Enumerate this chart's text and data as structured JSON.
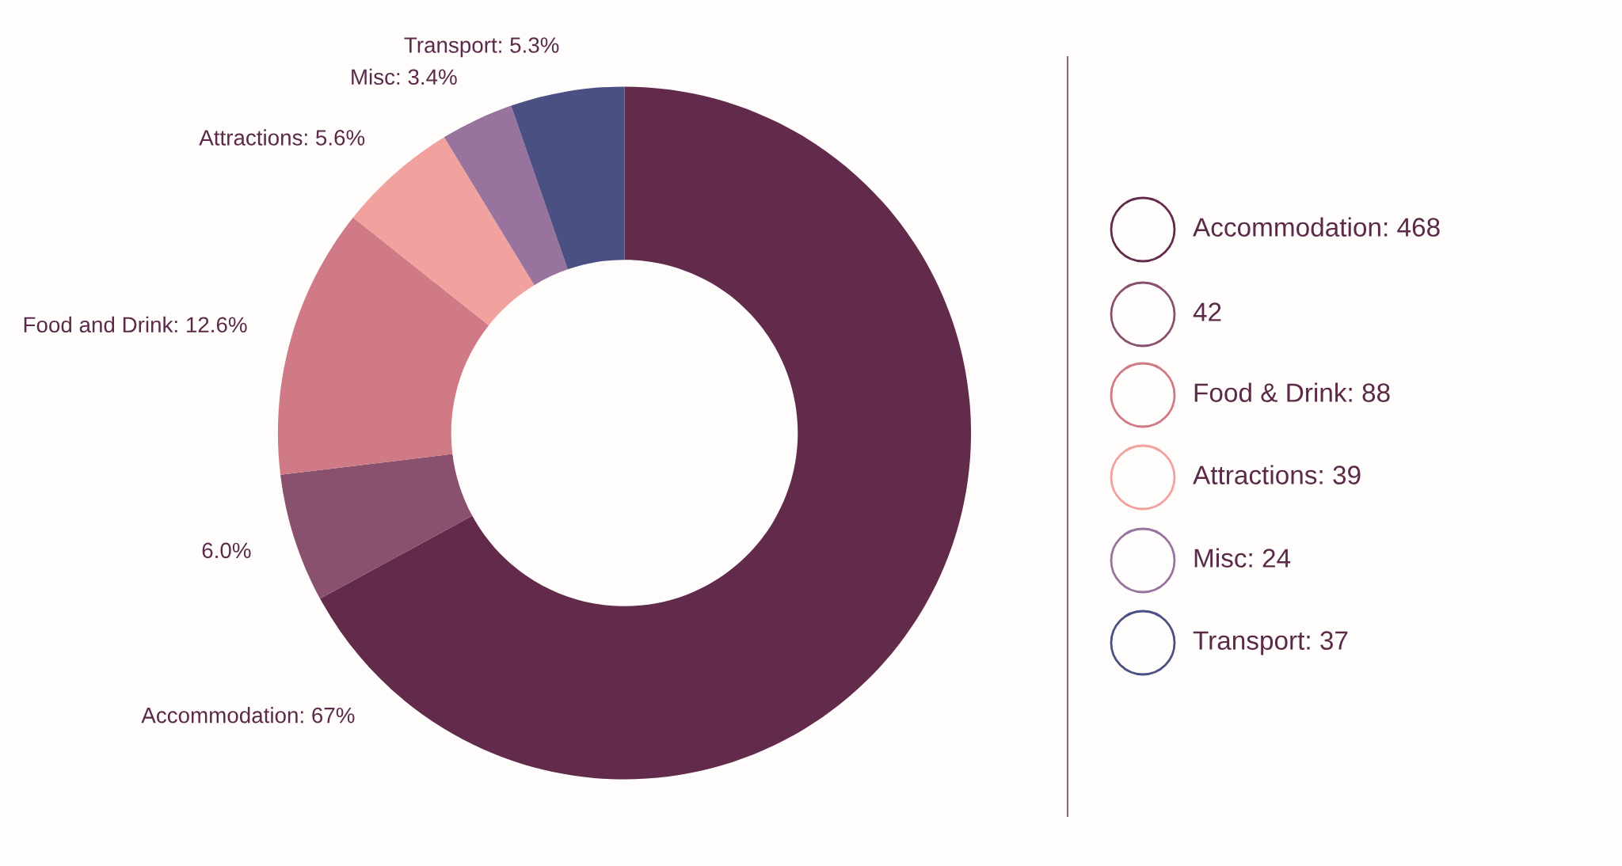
{
  "chart_data": [
    {
      "type": "donut",
      "categories": [
        "Accommodation",
        null,
        "Food and Drink",
        "Attractions",
        "Misc",
        "Transport"
      ],
      "values": [
        67,
        6.0,
        12.6,
        5.6,
        3.4,
        5.3
      ],
      "colors": [
        "#632b4b",
        "#8a516f",
        "#cf7a84",
        "#f2a29e",
        "#98739e",
        "#4b5082"
      ],
      "value_labels": [
        "67%",
        "6.0%",
        "12.6%",
        "5.6%",
        "3.4%",
        "5.3%"
      ],
      "annotations": [
        "Accommodation: 468",
        "42",
        "Food & Drink: 88",
        "Attractions: 39",
        "Misc: 24",
        "Transport: 37"
      ]
    }
  ]
}
